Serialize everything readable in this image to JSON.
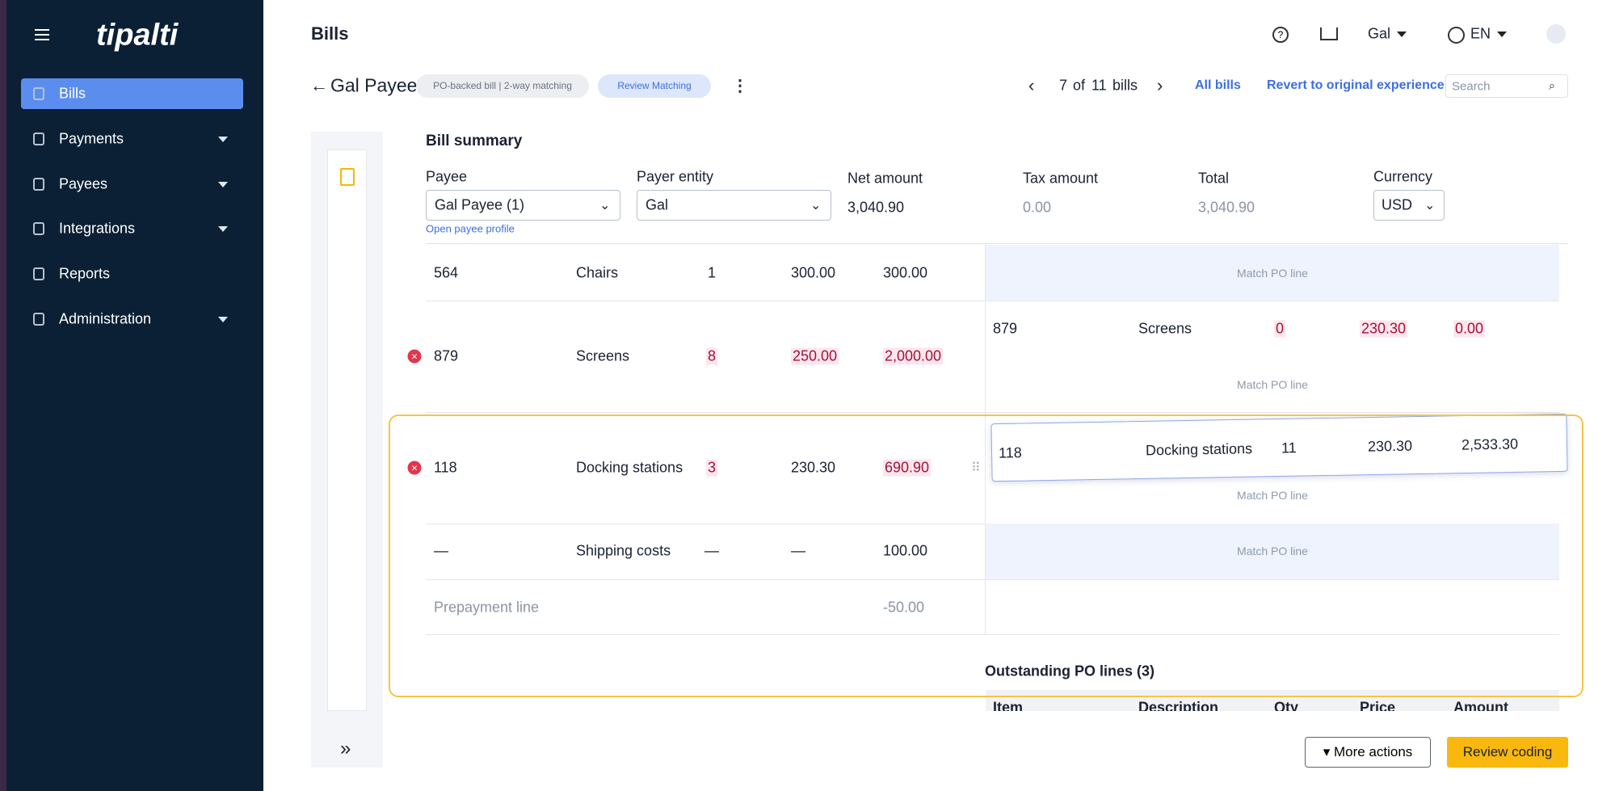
{
  "sidebar": {
    "logo": "tipalti",
    "nav": [
      "Bills",
      "Payments",
      "Payees",
      "Integrations",
      "Reports",
      "Administration"
    ]
  },
  "header": {
    "title": "Bills",
    "user": "Gal",
    "language": "EN"
  },
  "toolbar": {
    "payee": "Gal Payee",
    "tags": [
      "PO-backed bill | 2-way matching",
      "Review Matching"
    ],
    "pager": {
      "current": "7",
      "of": "of",
      "total": "11",
      "unit": "bills"
    },
    "links": [
      "All bills",
      "Revert to original experience"
    ],
    "search": "Search"
  },
  "summary": {
    "title": "Bill summary",
    "payee_label": "Payee",
    "payee": "Gal Payee (1)",
    "payee_link": "Open payee profile",
    "entity_label": "Payer entity",
    "entity": "Gal",
    "net_label": "Net amount",
    "net": "3,040.90",
    "tax_label": "Tax amount",
    "tax": "0.00",
    "total_label": "Total",
    "total": "3,040.90",
    "currency_label": "Currency",
    "currency": "USD"
  },
  "lines": {
    "rows": [
      {
        "item": "564",
        "description": "Chairs",
        "qty": "1",
        "price": "300.00",
        "amount": "300.00",
        "match": "Match PO line"
      },
      {
        "item": "879",
        "description": "Screens",
        "qty": "8",
        "price": "250.00",
        "amount": "2,000.00",
        "match": "Match PO line",
        "po": {
          "item": "879",
          "description": "Screens",
          "qty": "0",
          "price": "230.30",
          "amount": "0.00"
        }
      },
      {
        "item": "118",
        "description": "Docking stations",
        "qty": "3",
        "price": "230.30",
        "amount": "690.90",
        "match": "Match PO line",
        "po": {
          "item": "118",
          "description": "Docking stations",
          "qty": "11",
          "price": "230.30",
          "amount": "2,533.30"
        }
      },
      {
        "item": "—",
        "description": "Shipping costs",
        "qty": "—",
        "price": "—",
        "amount": "100.00",
        "match": "Match PO line"
      },
      {
        "item": "Prepayment line",
        "amount": "-50.00"
      }
    ]
  },
  "outstanding": {
    "title": "Outstanding PO lines (3)",
    "columns": [
      "Item",
      "Description",
      "Qty",
      "Price",
      "Amount"
    ]
  },
  "actions": [
    "More actions",
    "Review coding"
  ]
}
